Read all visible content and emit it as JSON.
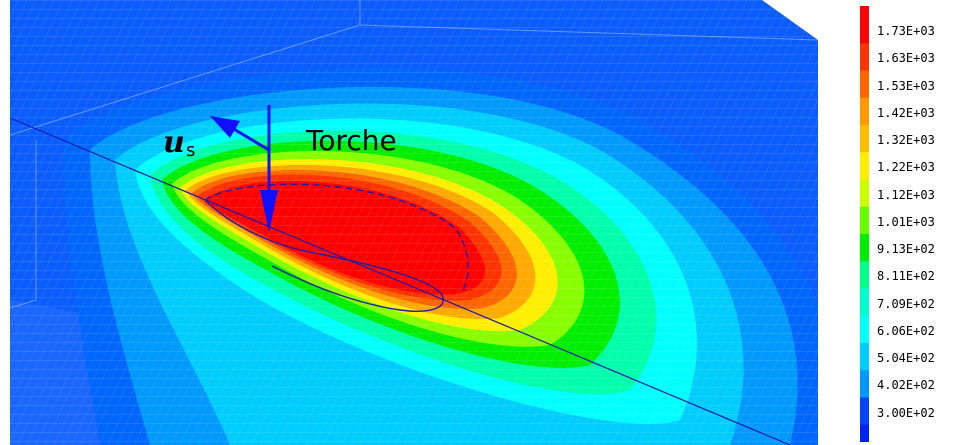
{
  "figure": {
    "torch_label": "Torche",
    "velocity_symbol": "u",
    "velocity_subscript": "s"
  },
  "legend": {
    "labels": [
      "1.73E+03",
      "1.63E+03",
      "1.53E+03",
      "1.42E+03",
      "1.32E+03",
      "1.22E+03",
      "1.12E+03",
      "1.01E+03",
      "9.13E+02",
      "8.11E+02",
      "7.09E+02",
      "6.06E+02",
      "5.04E+02",
      "4.02E+02",
      "3.00E+02"
    ],
    "colors": [
      "#ff0000",
      "#ff3300",
      "#ff6600",
      "#ff9900",
      "#ffbb00",
      "#ffee00",
      "#ccff00",
      "#66ff00",
      "#00ee00",
      "#00ff88",
      "#00ffcc",
      "#00ffff",
      "#00ccff",
      "#0099ff",
      "#0044ff"
    ],
    "bottom_color": "#0022ff"
  },
  "colors": {
    "background_field": "#0a5cff",
    "weld_line": "#1d1daa",
    "arrow": "#1010ff"
  }
}
